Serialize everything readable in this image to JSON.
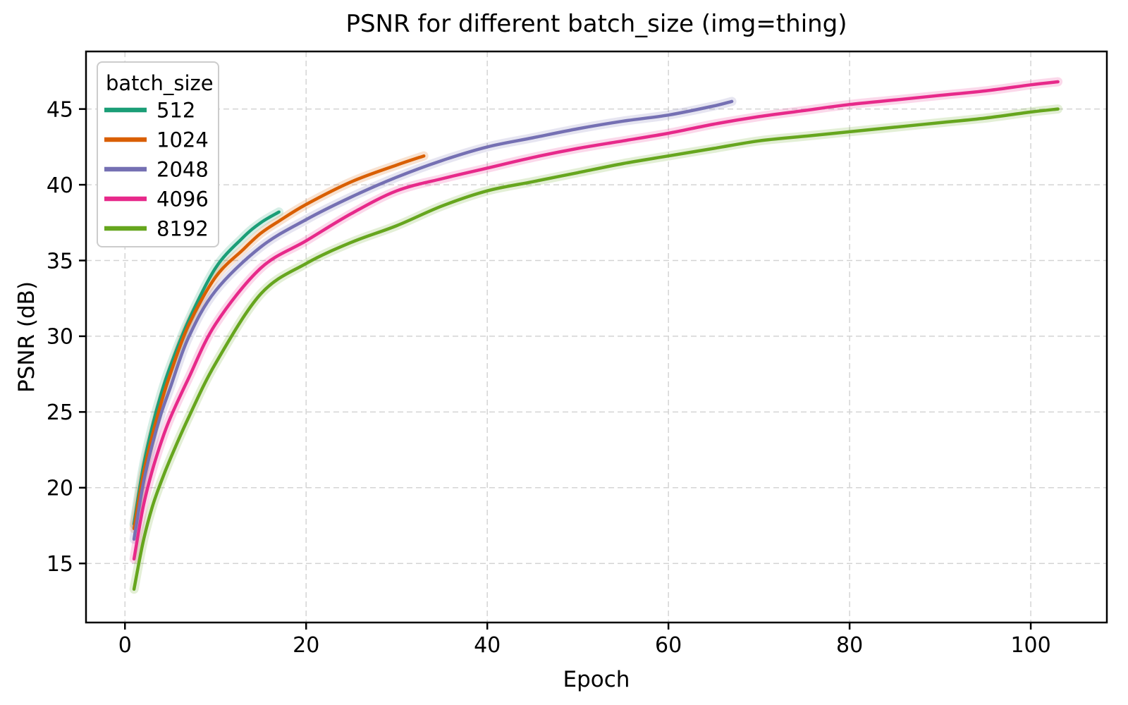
{
  "chart_data": {
    "type": "line",
    "title": "PSNR for different batch_size (img=thing)",
    "xlabel": "Epoch",
    "ylabel": "PSNR (dB)",
    "xlim": [
      -4.3,
      108.4
    ],
    "ylim": [
      11.1,
      48.8
    ],
    "x_ticks": [
      0,
      20,
      40,
      60,
      80,
      100
    ],
    "y_ticks": [
      15,
      20,
      25,
      30,
      35,
      40,
      45
    ],
    "grid": "dashed",
    "grid_color": "#d4d4d4",
    "spine_color": "#000000",
    "background": "#ffffff",
    "band_opacity": 0.18,
    "legend": {
      "title": "batch_size",
      "position": "upper-left",
      "entries": [
        "512",
        "1024",
        "2048",
        "4096",
        "8192"
      ]
    },
    "series": [
      {
        "name": "512",
        "color": "#1b9e77",
        "x": [
          1,
          2,
          3,
          4,
          5,
          7,
          10,
          13,
          15,
          17
        ],
        "y": [
          17.6,
          21.3,
          24.0,
          26.2,
          28.0,
          31.0,
          34.5,
          36.5,
          37.5,
          38.2
        ]
      },
      {
        "name": "1024",
        "color": "#d95f02",
        "x": [
          1,
          2,
          3,
          4,
          5,
          7,
          10,
          13,
          15,
          17,
          20,
          25,
          30,
          33
        ],
        "y": [
          17.3,
          20.8,
          23.4,
          25.6,
          27.5,
          30.7,
          33.9,
          35.7,
          36.8,
          37.6,
          38.7,
          40.2,
          41.3,
          41.9
        ]
      },
      {
        "name": "2048",
        "color": "#7570b3",
        "x": [
          1,
          2,
          3,
          4,
          5,
          7,
          10,
          15,
          20,
          25,
          30,
          35,
          40,
          45,
          50,
          55,
          60,
          65,
          67
        ],
        "y": [
          16.6,
          20.2,
          22.8,
          24.9,
          26.6,
          29.9,
          33.0,
          35.9,
          37.7,
          39.2,
          40.5,
          41.6,
          42.5,
          43.1,
          43.7,
          44.2,
          44.6,
          45.2,
          45.5
        ]
      },
      {
        "name": "4096",
        "color": "#e7298a",
        "x": [
          1,
          2,
          3,
          4,
          5,
          7,
          10,
          15,
          20,
          25,
          30,
          35,
          40,
          45,
          50,
          55,
          60,
          65,
          70,
          75,
          80,
          85,
          90,
          95,
          100,
          103
        ],
        "y": [
          15.3,
          18.7,
          21.1,
          23.0,
          24.6,
          27.2,
          30.8,
          34.5,
          36.3,
          38.1,
          39.6,
          40.4,
          41.1,
          41.8,
          42.4,
          42.9,
          43.4,
          44.0,
          44.5,
          44.9,
          45.3,
          45.6,
          45.9,
          46.2,
          46.6,
          46.8
        ]
      },
      {
        "name": "8192",
        "color": "#66a61e",
        "x": [
          1,
          2,
          3,
          4,
          5,
          7,
          10,
          15,
          20,
          25,
          30,
          35,
          40,
          45,
          50,
          55,
          60,
          65,
          70,
          75,
          80,
          85,
          90,
          95,
          100,
          103
        ],
        "y": [
          13.3,
          16.4,
          18.7,
          20.4,
          21.9,
          24.6,
          28.2,
          32.8,
          34.8,
          36.2,
          37.3,
          38.6,
          39.6,
          40.2,
          40.8,
          41.4,
          41.9,
          42.4,
          42.9,
          43.2,
          43.5,
          43.8,
          44.1,
          44.4,
          44.8,
          45.0
        ]
      }
    ]
  }
}
